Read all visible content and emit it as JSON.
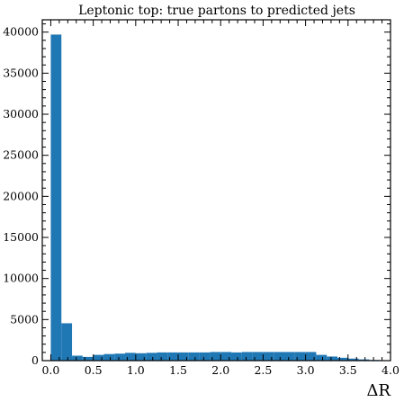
{
  "chart_data": {
    "type": "bar",
    "title": "Leptonic top: true partons to predicted jets",
    "xlabel": "ΔR",
    "ylabel": "",
    "xlim": [
      -0.1,
      4.0
    ],
    "ylim": [
      0,
      41500
    ],
    "bin_edges": [
      0.0,
      0.125,
      0.25,
      0.375,
      0.5,
      0.625,
      0.75,
      0.875,
      1.0,
      1.125,
      1.25,
      1.375,
      1.5,
      1.625,
      1.75,
      1.875,
      2.0,
      2.125,
      2.25,
      2.375,
      2.5,
      2.625,
      2.75,
      2.875,
      3.0,
      3.125,
      3.25,
      3.375,
      3.5,
      3.625,
      3.75,
      3.875,
      4.0
    ],
    "values": [
      39700,
      4550,
      600,
      450,
      700,
      800,
      850,
      950,
      900,
      950,
      1000,
      1000,
      1000,
      1000,
      1000,
      1050,
      1050,
      1000,
      1050,
      1050,
      1050,
      1050,
      1050,
      1050,
      1050,
      700,
      500,
      350,
      250,
      150,
      80,
      40
    ],
    "x_ticks": [
      0.0,
      0.5,
      1.0,
      1.5,
      2.0,
      2.5,
      3.0,
      3.5,
      4.0
    ],
    "x_tick_labels": [
      "0.0",
      "0.5",
      "1.0",
      "1.5",
      "2.0",
      "2.5",
      "3.0",
      "3.5",
      "4.0"
    ],
    "y_ticks": [
      0,
      5000,
      10000,
      15000,
      20000,
      25000,
      30000,
      35000,
      40000
    ],
    "y_tick_labels": [
      "0",
      "5000",
      "10000",
      "15000",
      "20000",
      "25000",
      "30000",
      "35000",
      "40000"
    ],
    "grid": false,
    "legend": "none",
    "bar_color": "#1f77b4"
  }
}
